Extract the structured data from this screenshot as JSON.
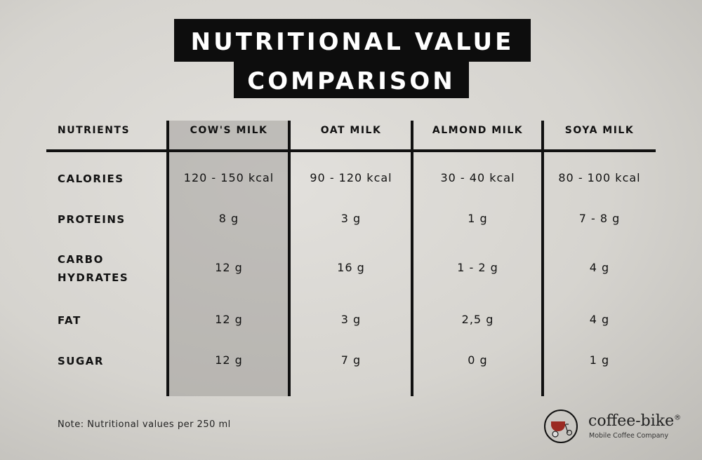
{
  "title": {
    "line1": "NUTRITIONAL VALUE",
    "line2": "COMPARISON"
  },
  "table": {
    "headers": [
      "NUTRIENTS",
      "COW'S MILK",
      "OAT MILK",
      "ALMOND MILK",
      "SOYA MILK"
    ],
    "highlighted_column": "COW'S MILK",
    "rows": [
      {
        "label": "CALORIES",
        "values": [
          "120 - 150 kcal",
          "90 - 120 kcal",
          "30 - 40 kcal",
          "80 - 100 kcal"
        ]
      },
      {
        "label": "PROTEINS",
        "values": [
          "8 g",
          "3 g",
          "1 g",
          "7 - 8 g"
        ]
      },
      {
        "label": "CARBO HYDRATES",
        "label_lines": [
          "CARBO",
          "HYDRATES"
        ],
        "values": [
          "12 g",
          "16 g",
          "1 - 2 g",
          "4 g"
        ]
      },
      {
        "label": "FAT",
        "values": [
          "12 g",
          "3 g",
          "2,5 g",
          "4 g"
        ]
      },
      {
        "label": "SUGAR",
        "values": [
          "12 g",
          "7 g",
          "0 g",
          "1 g"
        ]
      }
    ]
  },
  "note": "Note: Nutritional values per 250 ml",
  "logo": {
    "name": "coffee-bike",
    "registered": "®",
    "tagline": "Mobile Coffee Company",
    "icon": "coffee-bike-icon",
    "accent": "#9b2a22"
  }
}
